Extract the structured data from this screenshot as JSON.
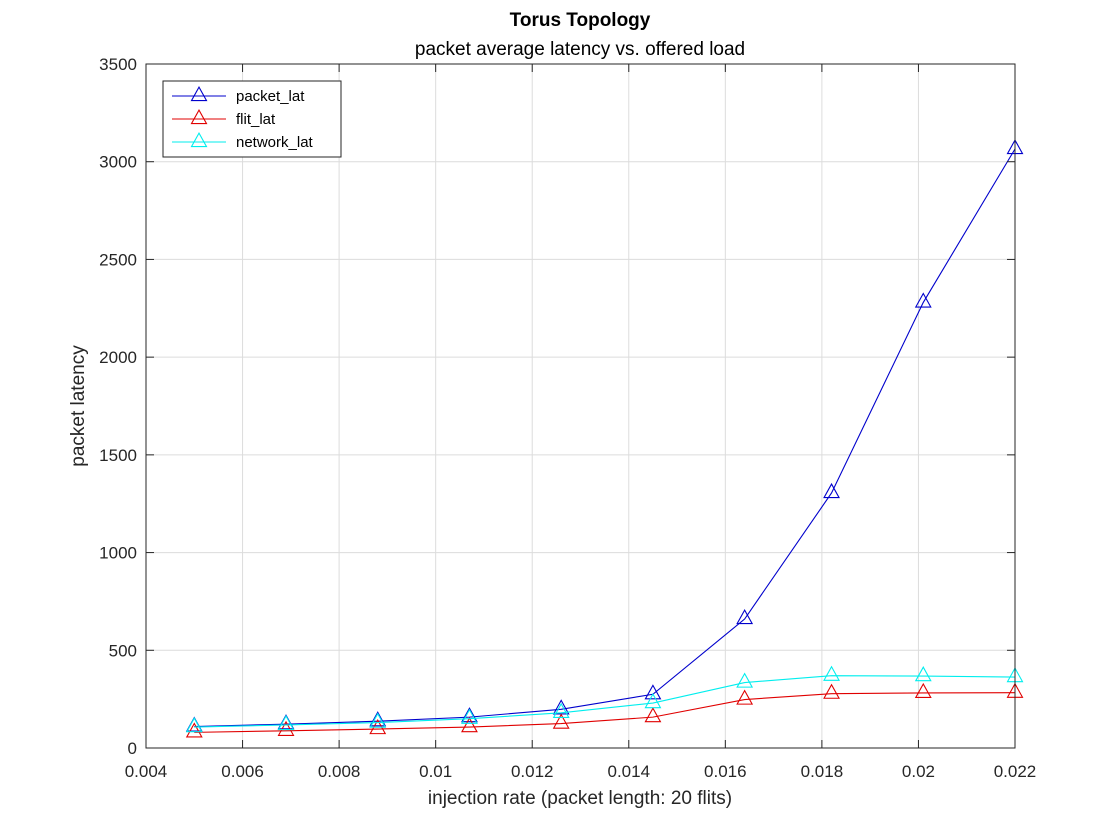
{
  "chart_data": {
    "type": "line",
    "title": "Torus Topology",
    "subtitle": "packet average latency vs. offered load",
    "xlabel": "injection rate (packet length: 20 flits)",
    "ylabel": "packet latency",
    "xlim": [
      0.004,
      0.022
    ],
    "ylim": [
      0,
      3500
    ],
    "xticks": [
      0.004,
      0.006,
      0.008,
      0.01,
      0.012,
      0.014,
      0.016,
      0.018,
      0.02,
      0.022
    ],
    "xtick_labels": [
      "0.004",
      "0.006",
      "0.008",
      "0.01",
      "0.012",
      "0.014",
      "0.016",
      "0.018",
      "0.02",
      "0.022"
    ],
    "yticks": [
      0,
      500,
      1000,
      1500,
      2000,
      2500,
      3000,
      3500
    ],
    "ytick_labels": [
      "0",
      "500",
      "1000",
      "1500",
      "2000",
      "2500",
      "3000",
      "3500"
    ],
    "grid": true,
    "legend_position": "top-left",
    "marker": "triangle-open",
    "x": [
      0.005,
      0.0069,
      0.0088,
      0.0107,
      0.0126,
      0.0145,
      0.0164,
      0.0182,
      0.0201,
      0.022
    ],
    "series": [
      {
        "name": "packet_lat",
        "color": "#0000cc",
        "values": [
          110,
          122,
          137,
          158,
          198,
          275,
          660,
          1305,
          2280,
          3065
        ]
      },
      {
        "name": "flit_lat",
        "color": "#e00000",
        "values": [
          80,
          88,
          97,
          107,
          125,
          158,
          248,
          278,
          282,
          283
        ]
      },
      {
        "name": "network_lat",
        "color": "#00eeee",
        "values": [
          107,
          118,
          130,
          150,
          180,
          230,
          335,
          370,
          368,
          363
        ]
      }
    ]
  }
}
